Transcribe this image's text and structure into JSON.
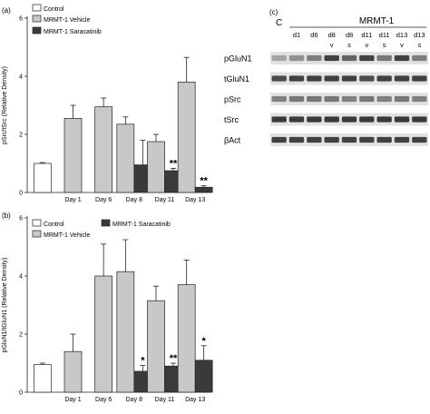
{
  "colors": {
    "control": "#ffffff",
    "vehicle": "#c8c8c8",
    "saracatinib": "#3a3a3a",
    "stroke": "#222222",
    "blot_bg": "#e2e2e2",
    "band": "#303030"
  },
  "chart_data": [
    {
      "panel": "(a)",
      "type": "bar",
      "ylabel": "pSrc/tSrc (Relative Density)",
      "ylim": [
        0,
        6
      ],
      "yticks": [
        "0",
        "2",
        "4",
        "6"
      ],
      "categories": [
        "",
        "Day 1",
        "Day 6",
        "Day 8",
        "Day 11",
        "Day 13"
      ],
      "series": [
        {
          "name": "Control",
          "color": "control",
          "values": [
            1.0,
            null,
            null,
            null,
            null,
            null
          ],
          "errors": [
            0.03,
            null,
            null,
            null,
            null,
            null
          ]
        },
        {
          "name": "MRMT-1 Vehicle",
          "color": "vehicle",
          "values": [
            null,
            2.55,
            2.95,
            2.35,
            1.75,
            3.8
          ],
          "errors": [
            null,
            0.45,
            0.3,
            0.25,
            0.25,
            0.85
          ]
        },
        {
          "name": "MRMT-1 Saracatinib",
          "color": "saracatinib",
          "values": [
            null,
            null,
            null,
            0.95,
            0.75,
            0.18
          ],
          "errors": [
            null,
            null,
            null,
            0.85,
            0.08,
            0.05
          ]
        }
      ],
      "annotations": [
        {
          "category": 4,
          "series": 2,
          "text": "**"
        },
        {
          "category": 5,
          "series": 2,
          "text": "**"
        }
      ],
      "legend": "top-left"
    },
    {
      "panel": "(b)",
      "type": "bar",
      "ylabel": "pGluN1/tGluN1 (Relative Density)",
      "ylim": [
        0,
        6
      ],
      "yticks": [
        "0",
        "2",
        "4",
        "6"
      ],
      "categories": [
        "",
        "Day 1",
        "Day 6",
        "Day 8",
        "Day 11",
        "Day 13"
      ],
      "series": [
        {
          "name": "Control",
          "color": "control",
          "values": [
            0.95,
            null,
            null,
            null,
            null,
            null
          ],
          "errors": [
            0.05,
            null,
            null,
            null,
            null,
            null
          ]
        },
        {
          "name": "MRMT-1 Vehicle",
          "color": "vehicle",
          "values": [
            null,
            1.4,
            4.0,
            4.15,
            3.15,
            3.7
          ],
          "errors": [
            null,
            0.6,
            1.1,
            1.1,
            0.5,
            0.85
          ]
        },
        {
          "name": "MRMT-1 Saracatinib",
          "color": "saracatinib",
          "values": [
            null,
            null,
            null,
            0.72,
            0.9,
            1.1
          ],
          "errors": [
            null,
            null,
            null,
            0.2,
            0.1,
            0.5
          ]
        }
      ],
      "annotations": [
        {
          "category": 3,
          "series": 2,
          "text": "*"
        },
        {
          "category": 4,
          "series": 2,
          "text": "**"
        },
        {
          "category": 5,
          "series": 2,
          "text": "*"
        }
      ],
      "legend": "top-left"
    }
  ],
  "blot": {
    "panel": "(c)",
    "control_label": "C",
    "group_label": "MRMT-1",
    "lanes": [
      "d1",
      "d6",
      "d8",
      "d8",
      "d11",
      "d11",
      "d13",
      "d13"
    ],
    "treatments": [
      "",
      "",
      "v",
      "s",
      "v",
      "s",
      "v",
      "s"
    ],
    "rows": [
      {
        "label": "pGluN1",
        "intensity": [
          0.35,
          0.45,
          0.55,
          0.9,
          0.7,
          0.9,
          0.6,
          0.9,
          0.55
        ]
      },
      {
        "label": "tGluN1",
        "intensity": [
          0.85,
          0.9,
          0.9,
          0.9,
          0.9,
          0.85,
          0.9,
          0.9,
          0.9
        ]
      },
      {
        "label": "pSrc",
        "intensity": [
          0.55,
          0.6,
          0.6,
          0.6,
          0.55,
          0.6,
          0.55,
          0.6,
          0.55
        ]
      },
      {
        "label": "tSrc",
        "intensity": [
          0.95,
          0.95,
          0.95,
          0.95,
          0.95,
          0.95,
          0.95,
          0.95,
          0.95
        ]
      },
      {
        "label": "βAct",
        "intensity": [
          0.9,
          0.9,
          0.9,
          0.9,
          0.9,
          0.9,
          0.9,
          0.9,
          0.9
        ]
      }
    ]
  }
}
